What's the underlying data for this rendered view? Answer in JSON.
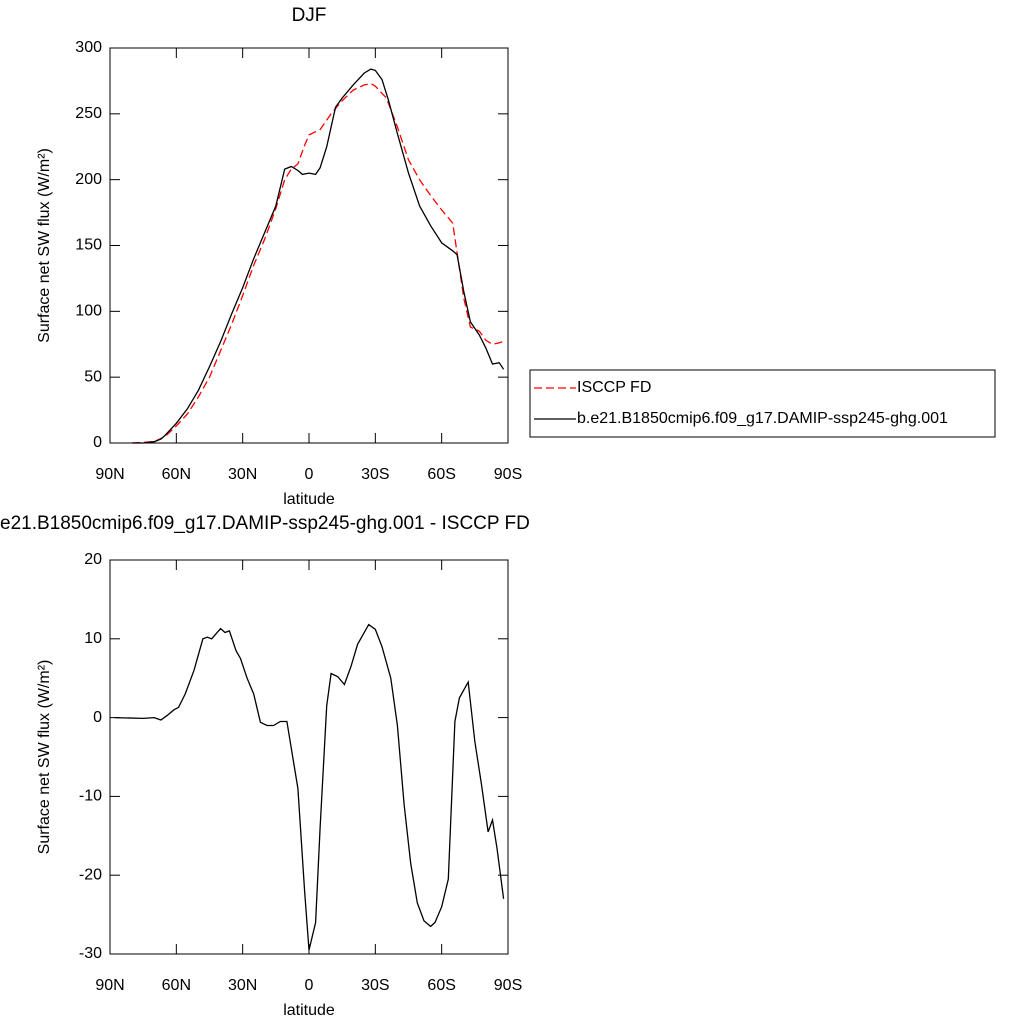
{
  "chart_data": [
    {
      "type": "line",
      "title": "DJF",
      "xlabel": "latitude",
      "ylabel": "Surface net SW flux (W/m²)",
      "xlim": [
        90,
        -90
      ],
      "xticks": [
        {
          "value": 90,
          "label": "90N"
        },
        {
          "value": 60,
          "label": "60N"
        },
        {
          "value": 30,
          "label": "30N"
        },
        0,
        {
          "value": -30,
          "label": "30S"
        },
        {
          "value": -60,
          "label": "60S"
        },
        {
          "value": -90,
          "label": "90S"
        }
      ],
      "ylim": [
        0,
        300
      ],
      "yticks": [
        0,
        50,
        100,
        150,
        200,
        250,
        300
      ],
      "legend": "right",
      "series": [
        {
          "name": "ISCCP FD",
          "color": "#ff0000",
          "linestyle": "dashed",
          "x": [
            80,
            70,
            65,
            60,
            55,
            50,
            45,
            40,
            35,
            30,
            25,
            20,
            15,
            11,
            8,
            5,
            2,
            0,
            -5,
            -10,
            -15,
            -20,
            -25,
            -28,
            -30,
            -35,
            -40,
            -45,
            -50,
            -55,
            -60,
            -65,
            -70,
            -73,
            -77,
            -80,
            -83,
            -86,
            -89
          ],
          "values": [
            0,
            1,
            5,
            13,
            22,
            35,
            50,
            70,
            90,
            112,
            135,
            155,
            178,
            200,
            208,
            212,
            226,
            234,
            238,
            250,
            260,
            268,
            272,
            273,
            271,
            262,
            240,
            215,
            200,
            188,
            177,
            167,
            110,
            88,
            85,
            78,
            75,
            76,
            78
          ]
        },
        {
          "name": "b.e21.B1850cmip6.f09_g17.DAMIP-ssp245-ghg.001",
          "color": "#000000",
          "linestyle": "solid",
          "x": [
            80,
            75,
            70,
            67,
            65,
            60,
            55,
            50,
            45,
            40,
            35,
            30,
            25,
            20,
            15,
            11,
            8,
            5,
            3,
            0,
            -3,
            -5,
            -8,
            -12,
            -15,
            -20,
            -25,
            -28,
            -30,
            -33,
            -36,
            -40,
            -45,
            -50,
            -55,
            -60,
            -65,
            -67,
            -70,
            -73,
            -77,
            -80,
            -83,
            -86,
            -88
          ],
          "values": [
            0,
            0,
            1,
            3,
            6,
            15,
            26,
            40,
            58,
            77,
            98,
            118,
            140,
            160,
            180,
            208,
            210,
            207,
            204,
            205,
            204,
            209,
            225,
            255,
            262,
            272,
            281,
            284,
            283,
            276,
            260,
            235,
            205,
            180,
            165,
            152,
            146,
            143,
            115,
            92,
            82,
            72,
            60,
            61,
            56
          ]
        }
      ]
    },
    {
      "type": "line",
      "title": "e21.B1850cmip6.f09_g17.DAMIP-ssp245-ghg.001 - ISCCP FD",
      "xlabel": "latitude",
      "ylabel": "Surface net SW flux (W/m²)",
      "xlim": [
        90,
        -90
      ],
      "xticks": [
        {
          "value": 90,
          "label": "90N"
        },
        {
          "value": 60,
          "label": "60N"
        },
        {
          "value": 30,
          "label": "30N"
        },
        0,
        {
          "value": -30,
          "label": "30S"
        },
        {
          "value": -60,
          "label": "60S"
        },
        {
          "value": -90,
          "label": "90S"
        }
      ],
      "ylim": [
        -30,
        20
      ],
      "yticks": [
        -30,
        -20,
        -10,
        0,
        10,
        20
      ],
      "series": [
        {
          "color": "#000000",
          "linestyle": "solid",
          "x": [
            88,
            75,
            70,
            67,
            64,
            61,
            59,
            56,
            52,
            48,
            46,
            44,
            40,
            38,
            36,
            33,
            31,
            28,
            25,
            22,
            19,
            16,
            13,
            10,
            5,
            2,
            0,
            -3,
            -5,
            -8,
            -10,
            -13,
            -16,
            -19,
            -22,
            -27,
            -30,
            -33,
            -37,
            -40,
            -43,
            -46,
            -49,
            -52,
            -55,
            -57,
            -60,
            -63,
            -66,
            -68,
            -72,
            -75,
            -78,
            -81,
            -83,
            -85,
            -88
          ],
          "values": [
            0,
            -0.1,
            0,
            -0.3,
            0.3,
            1,
            1.3,
            3,
            6,
            10,
            10.2,
            10,
            11.3,
            10.8,
            11,
            8.5,
            7.5,
            5,
            3,
            -0.6,
            -1,
            -1,
            -0.5,
            -0.5,
            -9,
            -22,
            -29.5,
            -26,
            -14,
            1.5,
            5.6,
            5.2,
            4.2,
            6.5,
            9.3,
            11.8,
            11.2,
            9,
            5,
            -1,
            -11,
            -18.5,
            -23.5,
            -25.8,
            -26.5,
            -26,
            -24,
            -20.5,
            -0.5,
            2.5,
            4.5,
            -3,
            -8.5,
            -14.5,
            -13,
            -16.5,
            -23
          ]
        }
      ]
    }
  ]
}
